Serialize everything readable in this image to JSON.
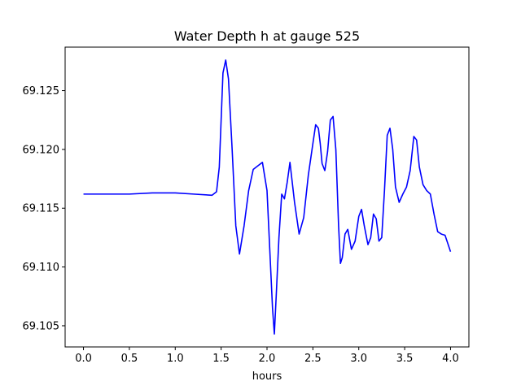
{
  "chart_data": {
    "type": "line",
    "title": "Water Depth h at gauge 525",
    "xlabel": "hours",
    "ylabel": "",
    "xlim": [
      -0.2,
      4.2
    ],
    "ylim": [
      69.1032,
      69.1287
    ],
    "xticks": [
      0.0,
      0.5,
      1.0,
      1.5,
      2.0,
      2.5,
      3.0,
      3.5,
      4.0
    ],
    "xtick_labels": [
      "0.0",
      "0.5",
      "1.0",
      "1.5",
      "2.0",
      "2.5",
      "3.0",
      "3.5",
      "4.0"
    ],
    "yticks": [
      69.105,
      69.11,
      69.115,
      69.12,
      69.125
    ],
    "ytick_labels": [
      "69.105",
      "69.110",
      "69.115",
      "69.120",
      "69.125"
    ],
    "grid": false,
    "legend": "none",
    "series": [
      {
        "color": "#0000ff",
        "x": [
          0.0,
          0.25,
          0.5,
          0.75,
          0.9,
          1.0,
          1.2,
          1.4,
          1.45,
          1.48,
          1.5,
          1.52,
          1.55,
          1.58,
          1.62,
          1.66,
          1.7,
          1.75,
          1.8,
          1.85,
          1.9,
          1.95,
          2.0,
          2.03,
          2.06,
          2.08,
          2.1,
          2.13,
          2.16,
          2.19,
          2.22,
          2.25,
          2.3,
          2.35,
          2.4,
          2.45,
          2.5,
          2.53,
          2.56,
          2.58,
          2.6,
          2.63,
          2.66,
          2.69,
          2.72,
          2.75,
          2.78,
          2.8,
          2.82,
          2.85,
          2.88,
          2.92,
          2.96,
          3.0,
          3.03,
          3.06,
          3.1,
          3.13,
          3.16,
          3.19,
          3.22,
          3.25,
          3.28,
          3.31,
          3.34,
          3.37,
          3.4,
          3.44,
          3.48,
          3.52,
          3.56,
          3.6,
          3.63,
          3.66,
          3.7,
          3.74,
          3.78,
          3.82,
          3.86,
          3.9,
          3.94,
          3.97,
          4.0
        ],
        "y": [
          69.1162,
          69.1162,
          69.1162,
          69.1163,
          69.1163,
          69.1163,
          69.1162,
          69.1161,
          69.1164,
          69.1185,
          69.1225,
          69.1265,
          69.1276,
          69.126,
          69.12,
          69.1135,
          69.1111,
          69.1135,
          69.1165,
          69.1183,
          69.1186,
          69.1189,
          69.1165,
          69.1115,
          69.1065,
          69.1043,
          69.1075,
          69.1125,
          69.1162,
          69.1158,
          69.1172,
          69.1189,
          69.1155,
          69.1128,
          69.1142,
          69.1178,
          69.1205,
          69.1221,
          69.1218,
          69.1205,
          69.1188,
          69.1182,
          69.1198,
          69.1225,
          69.1228,
          69.12,
          69.1135,
          69.1103,
          69.1108,
          69.1128,
          69.1132,
          69.1115,
          69.1122,
          69.1143,
          69.1149,
          69.1135,
          69.1119,
          69.1125,
          69.1145,
          69.1141,
          69.1122,
          69.1125,
          69.1165,
          69.1212,
          69.1218,
          69.12,
          69.1168,
          69.1155,
          69.1162,
          69.1168,
          69.1182,
          69.1211,
          69.1208,
          69.1185,
          69.117,
          69.1165,
          69.1162,
          69.1145,
          69.113,
          69.1128,
          69.1127,
          69.112,
          69.1113
        ]
      }
    ]
  }
}
